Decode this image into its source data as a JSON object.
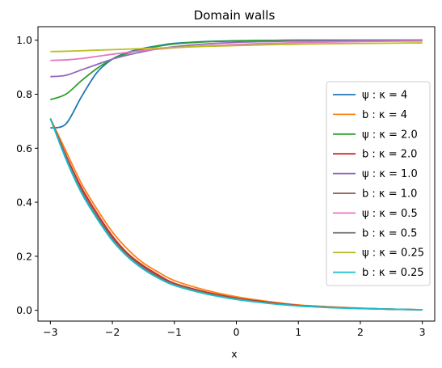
{
  "chart_data": {
    "type": "line",
    "title": "Domain walls",
    "xlabel": "x",
    "ylabel": "",
    "xlim": [
      -3.2,
      3.2
    ],
    "ylim": [
      -0.04,
      1.05
    ],
    "xticks": [
      -3,
      -2,
      -1,
      0,
      1,
      2,
      3
    ],
    "xtick_labels": [
      "−3",
      "−2",
      "−1",
      "0",
      "1",
      "2",
      "3"
    ],
    "yticks": [
      0.0,
      0.2,
      0.4,
      0.6,
      0.8,
      1.0
    ],
    "ytick_labels": [
      "0.0",
      "0.2",
      "0.4",
      "0.6",
      "0.8",
      "1.0"
    ],
    "grid": false,
    "legend_position": "center-right",
    "x": [
      -3.0,
      -2.75,
      -2.5,
      -2.25,
      -2.0,
      -1.75,
      -1.5,
      -1.25,
      -1.0,
      -0.5,
      0.0,
      0.5,
      1.0,
      1.5,
      2.0,
      2.5,
      3.0
    ],
    "series": [
      {
        "name": "ψ : κ = 4",
        "color": "#1f77b4",
        "values": [
          0.675,
          0.69,
          0.79,
          0.88,
          0.93,
          0.955,
          0.97,
          0.98,
          0.988,
          0.995,
          0.998,
          0.999,
          1.0,
          1.0,
          1.0,
          1.0,
          1.0
        ]
      },
      {
        "name": "b : κ = 4",
        "color": "#ff7f0e",
        "values": [
          0.71,
          0.59,
          0.47,
          0.375,
          0.29,
          0.225,
          0.175,
          0.14,
          0.11,
          0.075,
          0.05,
          0.033,
          0.02,
          0.013,
          0.008,
          0.004,
          0.002
        ]
      },
      {
        "name": "ψ : κ = 2.0",
        "color": "#2ca02c",
        "values": [
          0.78,
          0.8,
          0.85,
          0.895,
          0.93,
          0.952,
          0.967,
          0.978,
          0.986,
          0.994,
          0.997,
          0.999,
          1.0,
          1.0,
          1.0,
          1.0,
          1.0
        ]
      },
      {
        "name": "b : κ = 2.0",
        "color": "#d62728",
        "values": [
          0.71,
          0.575,
          0.455,
          0.36,
          0.275,
          0.21,
          0.165,
          0.13,
          0.1,
          0.068,
          0.045,
          0.03,
          0.018,
          0.011,
          0.007,
          0.004,
          0.002
        ]
      },
      {
        "name": "ψ : κ = 1.0",
        "color": "#9467bd",
        "values": [
          0.865,
          0.87,
          0.89,
          0.91,
          0.93,
          0.945,
          0.958,
          0.968,
          0.976,
          0.986,
          0.992,
          0.995,
          0.997,
          0.998,
          0.999,
          0.999,
          1.0
        ]
      },
      {
        "name": "b : κ = 1.0",
        "color": "#8c564b",
        "values": [
          0.71,
          0.57,
          0.445,
          0.35,
          0.268,
          0.205,
          0.16,
          0.125,
          0.097,
          0.065,
          0.043,
          0.028,
          0.017,
          0.011,
          0.007,
          0.004,
          0.002
        ]
      },
      {
        "name": "ψ : κ = 0.5",
        "color": "#e377c2",
        "values": [
          0.925,
          0.927,
          0.932,
          0.94,
          0.948,
          0.955,
          0.962,
          0.967,
          0.972,
          0.979,
          0.984,
          0.988,
          0.991,
          0.993,
          0.995,
          0.996,
          0.997
        ]
      },
      {
        "name": "b : κ = 0.5",
        "color": "#7f7f7f",
        "values": [
          0.71,
          0.565,
          0.44,
          0.345,
          0.262,
          0.2,
          0.155,
          0.12,
          0.094,
          0.063,
          0.042,
          0.027,
          0.017,
          0.011,
          0.007,
          0.004,
          0.002
        ]
      },
      {
        "name": "ψ : κ = 0.25",
        "color": "#bcbd22",
        "values": [
          0.958,
          0.959,
          0.961,
          0.963,
          0.965,
          0.967,
          0.969,
          0.971,
          0.973,
          0.977,
          0.98,
          0.983,
          0.985,
          0.987,
          0.988,
          0.989,
          0.99
        ]
      },
      {
        "name": "b : κ = 0.25",
        "color": "#17becf",
        "values": [
          0.71,
          0.56,
          0.435,
          0.34,
          0.258,
          0.197,
          0.152,
          0.118,
          0.092,
          0.061,
          0.04,
          0.026,
          0.016,
          0.01,
          0.006,
          0.004,
          0.002
        ]
      }
    ]
  }
}
